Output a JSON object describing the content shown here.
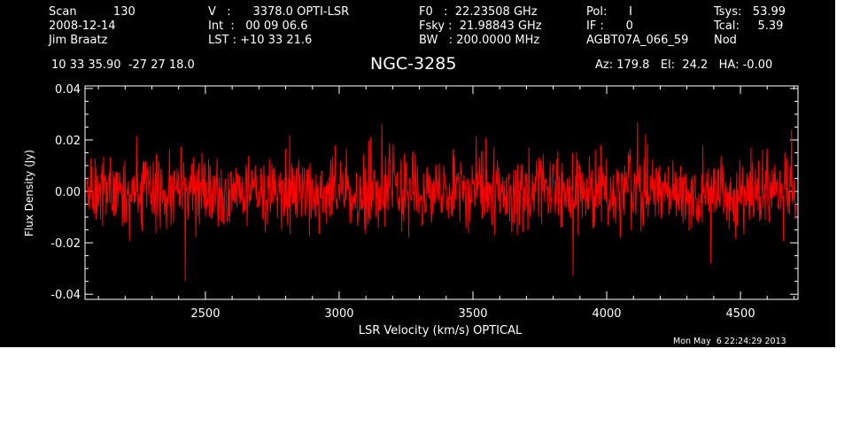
{
  "header": {
    "col1": [
      "Scan          130",
      "2008-12-14",
      "Jim Braatz"
    ],
    "col2": [
      "V   :      3378.0 OPTI-LSR",
      "Int  :   00 09 06.6",
      "LST : +10 33 21.6"
    ],
    "col3": [
      "F0   :  22.23508 GHz",
      "Fsky :  21.98843 GHz",
      "BW   : 200.0000 MHz"
    ],
    "col4": [
      "Pol:      I",
      "IF :      0",
      "AGBT07A_066_59"
    ],
    "col5": [
      "Tsys:   53.99",
      "Tcal:     5.39",
      "Nod"
    ],
    "coords": "10 33 35.90  -27 27 18.0",
    "source": "NGC-3285",
    "pointing": "Az: 179.8   El:  24.2   HA: -0.00"
  },
  "timestamp": "Mon May  6 22:24:29 2013",
  "chart_data": {
    "type": "line",
    "title": "NGC-3285",
    "xlabel": "LSR Velocity (km/s) OPTICAL",
    "ylabel": "Flux Density (Jy)",
    "xlim": [
      2050,
      4715
    ],
    "ylim": [
      -0.042,
      0.041
    ],
    "x_ticks": [
      2500,
      3000,
      3500,
      4000,
      4500
    ],
    "y_ticks": [
      -0.04,
      -0.02,
      0.0,
      0.02,
      0.04
    ],
    "x_tick_labels": [
      "2500",
      "3000",
      "3500",
      "4000",
      "4500"
    ],
    "y_tick_labels": [
      "-0.04",
      "-0.02",
      "0.00",
      "0.02",
      "0.04"
    ],
    "series": [
      {
        "color": "#ff0000",
        "x_start": 2057,
        "x_end": 4708,
        "n_points": 1400,
        "noise_rms": 0.0075,
        "mean": 0.0,
        "notable_dips": [
          [
            2425,
            -0.035
          ],
          [
            3875,
            -0.033
          ],
          [
            4390,
            -0.028
          ]
        ],
        "notable_peaks": [
          [
            3160,
            0.026
          ],
          [
            4115,
            0.027
          ],
          [
            4690,
            0.024
          ]
        ]
      }
    ],
    "grid": false,
    "background": "#000000",
    "axis_color": "#ffffff"
  }
}
